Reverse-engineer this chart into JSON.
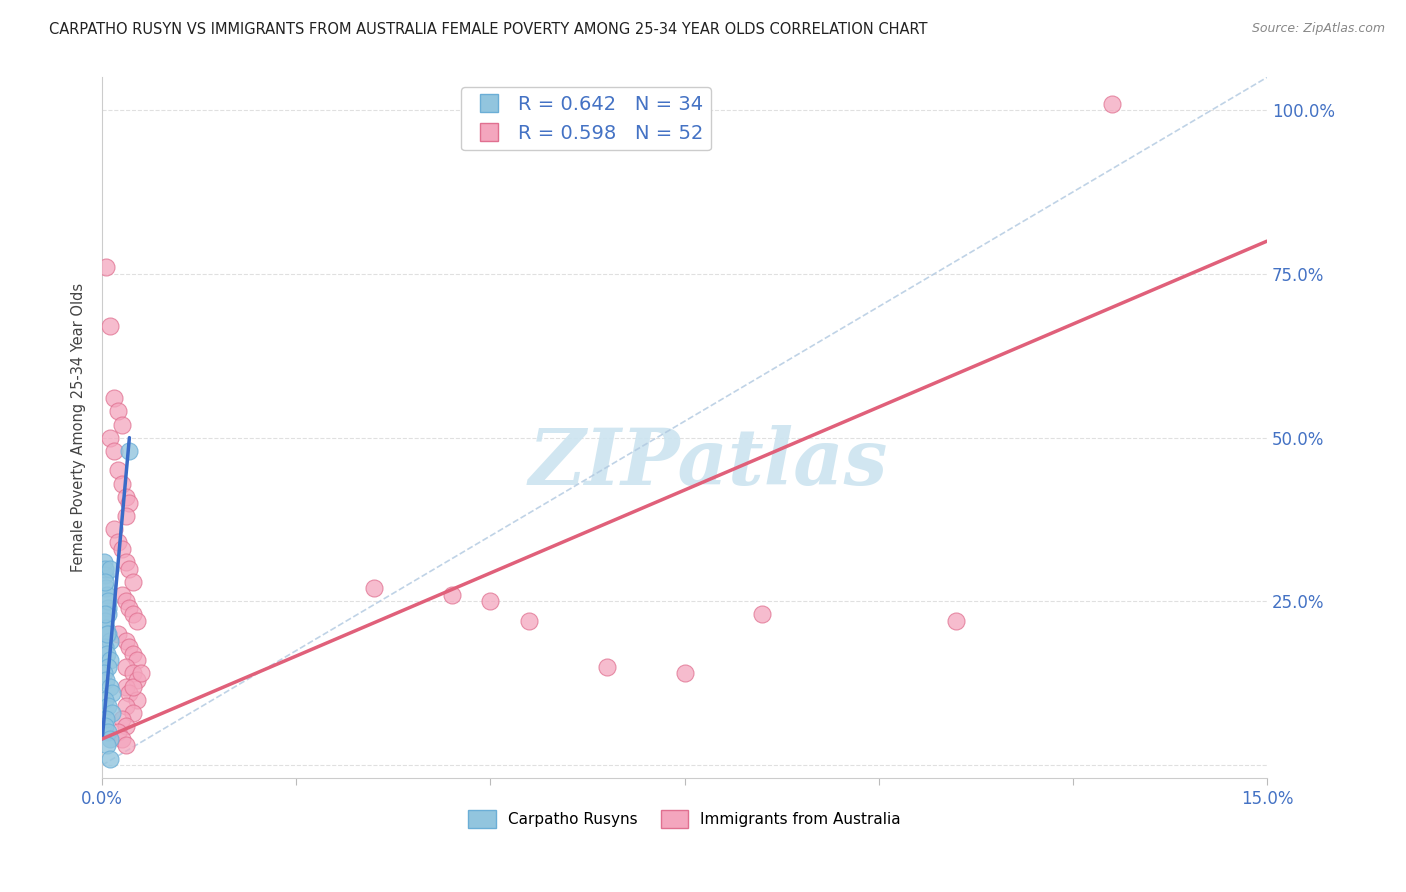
{
  "title": "CARPATHO RUSYN VS IMMIGRANTS FROM AUSTRALIA FEMALE POVERTY AMONG 25-34 YEAR OLDS CORRELATION CHART",
  "source": "Source: ZipAtlas.com",
  "ylabel": "Female Poverty Among 25-34 Year Olds",
  "xlim": [
    0.0,
    0.15
  ],
  "ylim": [
    -0.02,
    1.05
  ],
  "xticks": [
    0.0,
    0.025,
    0.05,
    0.075,
    0.1,
    0.125,
    0.15
  ],
  "xticklabels": [
    "0.0%",
    "",
    "",
    "",
    "",
    "",
    "15.0%"
  ],
  "yticks": [
    0.0,
    0.25,
    0.5,
    0.75,
    1.0
  ],
  "yticklabels": [
    "",
    "25.0%",
    "50.0%",
    "75.0%",
    "100.0%"
  ],
  "blue_R": "0.642",
  "blue_N": "34",
  "pink_R": "0.598",
  "pink_N": "52",
  "blue_color": "#92c5de",
  "pink_color": "#f4a6be",
  "blue_edge_color": "#6baed6",
  "pink_edge_color": "#e07090",
  "blue_line_color": "#3a6bc8",
  "pink_line_color": "#e0607a",
  "diag_color": "#b0c8e0",
  "background_color": "#ffffff",
  "grid_color": "#dddddd",
  "watermark": "ZIPatlas",
  "watermark_color": "#cce4f0",
  "blue_scatter_x": [
    0.0002,
    0.0003,
    0.0004,
    0.0005,
    0.0006,
    0.0007,
    0.0008,
    0.001,
    0.0003,
    0.0005,
    0.0007,
    0.001,
    0.0004,
    0.0006,
    0.001,
    0.0008,
    0.0002,
    0.0005,
    0.001,
    0.0012,
    0.0003,
    0.0007,
    0.0012,
    0.0005,
    0.0004,
    0.0008,
    0.001,
    0.0006,
    0.0003,
    0.0007,
    0.0004,
    0.0006,
    0.0035,
    0.001
  ],
  "blue_scatter_y": [
    0.31,
    0.29,
    0.3,
    0.27,
    0.26,
    0.24,
    0.23,
    0.3,
    0.22,
    0.21,
    0.2,
    0.19,
    0.18,
    0.17,
    0.16,
    0.15,
    0.14,
    0.13,
    0.12,
    0.11,
    0.1,
    0.09,
    0.08,
    0.07,
    0.06,
    0.05,
    0.04,
    0.03,
    0.28,
    0.25,
    0.23,
    0.2,
    0.48,
    0.01
  ],
  "pink_scatter_x": [
    0.0005,
    0.001,
    0.0015,
    0.002,
    0.0025,
    0.001,
    0.0015,
    0.002,
    0.0025,
    0.003,
    0.0035,
    0.003,
    0.0015,
    0.002,
    0.0025,
    0.003,
    0.0035,
    0.004,
    0.0025,
    0.003,
    0.0035,
    0.004,
    0.0045,
    0.002,
    0.003,
    0.0035,
    0.004,
    0.0045,
    0.003,
    0.004,
    0.0045,
    0.003,
    0.0035,
    0.0045,
    0.003,
    0.004,
    0.0025,
    0.003,
    0.035,
    0.045,
    0.05,
    0.055,
    0.065,
    0.075,
    0.085,
    0.11,
    0.13,
    0.002,
    0.0025,
    0.003,
    0.004,
    0.005
  ],
  "pink_scatter_y": [
    0.76,
    0.67,
    0.56,
    0.54,
    0.52,
    0.5,
    0.48,
    0.45,
    0.43,
    0.41,
    0.4,
    0.38,
    0.36,
    0.34,
    0.33,
    0.31,
    0.3,
    0.28,
    0.26,
    0.25,
    0.24,
    0.23,
    0.22,
    0.2,
    0.19,
    0.18,
    0.17,
    0.16,
    0.15,
    0.14,
    0.13,
    0.12,
    0.11,
    0.1,
    0.09,
    0.08,
    0.07,
    0.06,
    0.27,
    0.26,
    0.25,
    0.22,
    0.15,
    0.14,
    0.23,
    0.22,
    1.01,
    0.05,
    0.04,
    0.03,
    0.12,
    0.14
  ],
  "blue_line_x0": 0.0,
  "blue_line_y0": 0.04,
  "blue_line_x1": 0.0035,
  "blue_line_y1": 0.5,
  "pink_line_x0": 0.0,
  "pink_line_y0": 0.04,
  "pink_line_x1": 0.15,
  "pink_line_y1": 0.8
}
